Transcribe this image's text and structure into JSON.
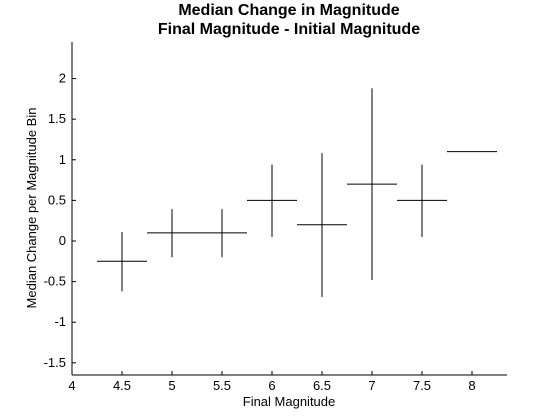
{
  "chart_data": {
    "type": "errorbar-cross",
    "title": "Median Change in Magnitude",
    "subtitle": "Final Magnitude - Initial Magnitude",
    "xlabel": "Final Magnitude",
    "ylabel": "Median Change per Magnitude Bin",
    "xlim": [
      4,
      8.35
    ],
    "ylim": [
      -1.65,
      2.45
    ],
    "xticks": [
      4,
      4.5,
      5,
      5.5,
      6,
      6.5,
      7,
      7.5,
      8
    ],
    "xtick_labels": [
      "4",
      "4.5",
      "5",
      "5.5",
      "6",
      "6.5",
      "7",
      "7.5",
      "8"
    ],
    "yticks": [
      -1.5,
      -1,
      -0.5,
      0,
      0.5,
      1,
      1.5,
      2
    ],
    "ytick_labels": [
      "-1.5",
      "-1",
      "-0.5",
      "0",
      "0.5",
      "1",
      "1.5",
      "2"
    ],
    "grid": false,
    "series": [
      {
        "points": [
          {
            "x": 4.5,
            "x_low": 4.25,
            "x_high": 4.75,
            "y": -0.25,
            "y_low": -0.62,
            "y_high": 0.11
          },
          {
            "x": 5.0,
            "x_low": 4.75,
            "x_high": 5.25,
            "y": 0.1,
            "y_low": -0.2,
            "y_high": 0.39
          },
          {
            "x": 5.5,
            "x_low": 5.25,
            "x_high": 5.75,
            "y": 0.1,
            "y_low": -0.2,
            "y_high": 0.39
          },
          {
            "x": 6.0,
            "x_low": 5.75,
            "x_high": 6.25,
            "y": 0.5,
            "y_low": 0.05,
            "y_high": 0.94
          },
          {
            "x": 6.5,
            "x_low": 6.25,
            "x_high": 6.75,
            "y": 0.2,
            "y_low": -0.69,
            "y_high": 1.08
          },
          {
            "x": 7.0,
            "x_low": 6.75,
            "x_high": 7.25,
            "y": 0.7,
            "y_low": -0.48,
            "y_high": 1.88
          },
          {
            "x": 7.5,
            "x_low": 7.25,
            "x_high": 7.75,
            "y": 0.5,
            "y_low": 0.05,
            "y_high": 0.94
          },
          {
            "x": 8.0,
            "x_low": 7.75,
            "x_high": 8.25,
            "y": 1.1,
            "y_low": 1.1,
            "y_high": 1.1
          }
        ]
      }
    ]
  }
}
